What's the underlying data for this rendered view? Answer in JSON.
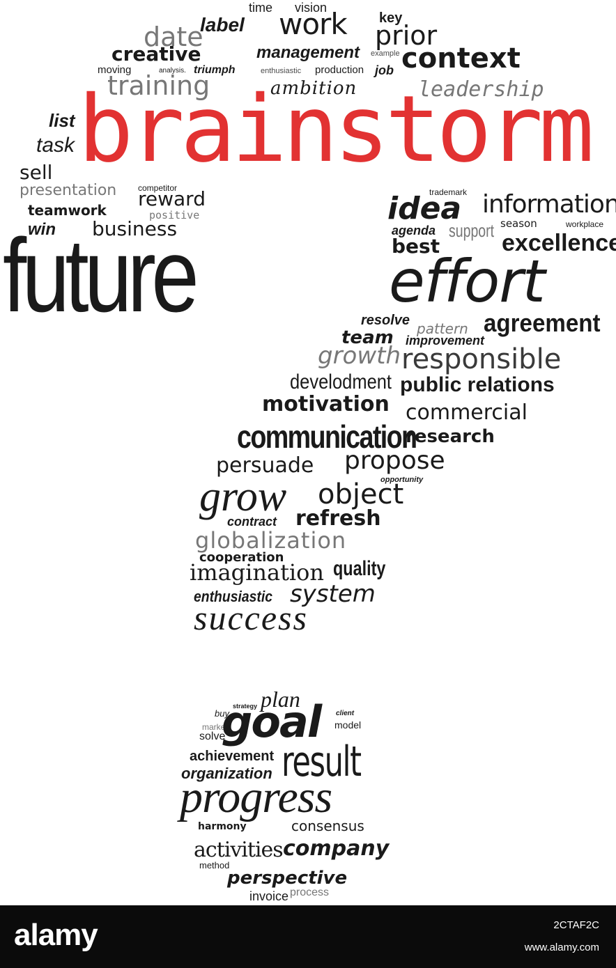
{
  "colors": {
    "accent": "#e23232",
    "ink": "#1a1a1a",
    "footer_bg": "#0b0b0b",
    "footer_text": "#ffffff"
  },
  "cloud": {
    "top": {
      "w_time": "time",
      "w_vision": "vision",
      "w_key": "key",
      "w_label": "label",
      "w_work": "work",
      "w_date": "date",
      "w_prior": "prior",
      "w_creative": "creative",
      "w_management": "management",
      "w_example": "example",
      "w_context": "context",
      "w_moving": "moving",
      "w_analysis": "analysis.",
      "w_triumph": "triumph",
      "w_enthusiastic1": "enthusiastic",
      "w_production": "production",
      "w_job": "job",
      "w_training": "training",
      "w_ambition": "ambition",
      "w_leadership": "leadership",
      "w_brainstorm": "brainstorm",
      "w_list": "list",
      "w_task": "task",
      "w_sell": "sell",
      "w_presentation": "presentation",
      "w_competitor": "competitor",
      "w_reward": "reward",
      "w_teamwork": "teamwork",
      "w_positive": "positive",
      "w_win": "win",
      "w_business": "business",
      "w_future": "future"
    },
    "right": {
      "w_trademark": "trademark",
      "w_idea": "idea",
      "w_information": "information",
      "w_agenda": "agenda",
      "w_support": "support",
      "w_season": "season",
      "w_workplace": "workplace",
      "w_best": "best",
      "w_excellence": "excellence",
      "w_effort": "effort",
      "w_resolve": "resolve",
      "w_pattern": "pattern",
      "w_agreement": "agreement",
      "w_team": "team",
      "w_improvement": "improvement",
      "w_growth": "growth",
      "w_responsible": "responsible"
    },
    "middle": {
      "w_develodment": "develodment",
      "w_public_relations": "public relations",
      "w_motivation": "motivation",
      "w_commercial": "commercial",
      "w_communication": "communication",
      "w_research": "research",
      "w_persuade": "persuade",
      "w_propose": "propose",
      "w_opportunity": "opportunity",
      "w_grow": "grow",
      "w_object": "object",
      "w_contract": "contract",
      "w_refresh": "refresh",
      "w_globalization": "globalization",
      "w_cooperation": "cooperation",
      "w_imagination": "imagination",
      "w_quality": "quality",
      "w_enthusiastic2": "enthusiastic",
      "w_system": "system",
      "w_success": "success"
    },
    "dot": {
      "w_strategy": "strategy",
      "w_plan": "plan",
      "w_buy": "buy",
      "w_client": "client",
      "w_market": "market",
      "w_goal": "goal",
      "w_model": "model",
      "w_solve": "solve",
      "w_achievement": "achievement",
      "w_result": "result",
      "w_organization": "organization",
      "w_progress": "progress",
      "w_harmony": "harmony",
      "w_consensus": "consensus",
      "w_activities": "activities",
      "w_company": "company",
      "w_method": "method",
      "w_perspective": "perspective",
      "w_invoice": "invoice",
      "w_process": "process"
    }
  },
  "footer": {
    "brand": "alamy",
    "image_id": "2CTAF2C",
    "url": "www.alamy.com"
  }
}
